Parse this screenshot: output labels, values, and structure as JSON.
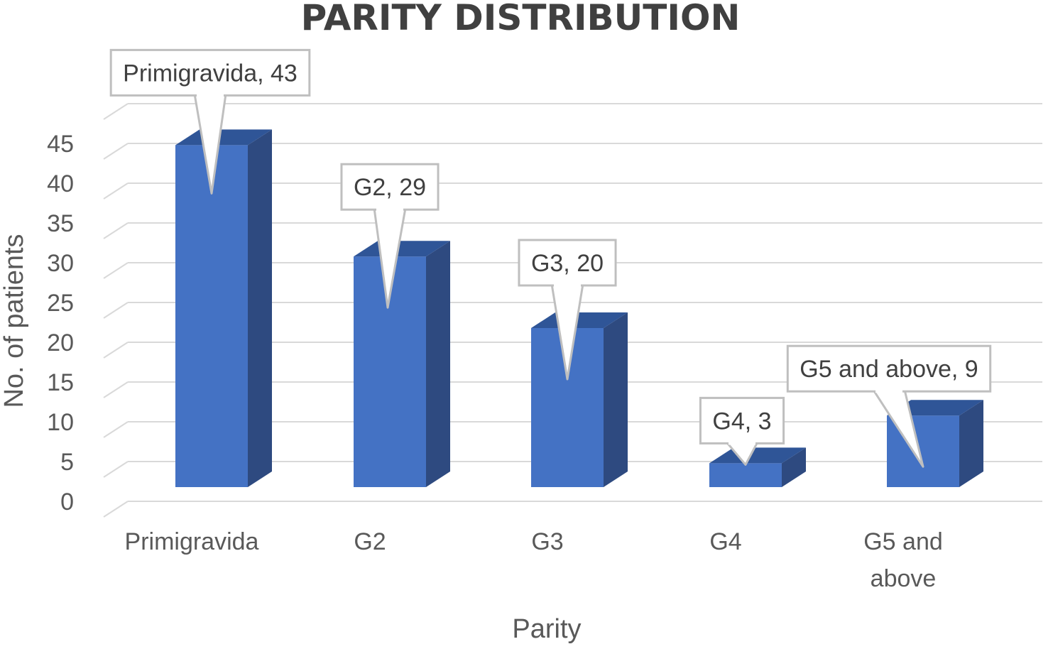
{
  "chart_data": {
    "type": "bar",
    "title": "PARITY DISTRIBUTION",
    "xlabel": "Parity",
    "ylabel": "No. of patients",
    "categories": [
      "Primigravida",
      "G2",
      "G3",
      "G4",
      "G5 and above"
    ],
    "category_lines": [
      [
        "Primigravida"
      ],
      [
        "G2"
      ],
      [
        "G3"
      ],
      [
        "G4"
      ],
      [
        "G5 and",
        "above"
      ]
    ],
    "values": [
      43,
      29,
      20,
      3,
      9
    ],
    "data_labels": [
      "Primigravida, 43",
      "G2, 29",
      "G3, 20",
      "G4, 3",
      "G5 and above, 9"
    ],
    "yticks": [
      "0",
      "5",
      "10",
      "15",
      "20",
      "25",
      "30",
      "35",
      "40",
      "45"
    ],
    "ylim": [
      0,
      45
    ],
    "grid": true,
    "style_3d": true,
    "colors": {
      "bar_front": "#4472C4",
      "bar_side": "#2E4A80",
      "bar_top": "#2F5597",
      "grid": "#D9D9D9",
      "callout_border": "#BFBFBF"
    }
  }
}
